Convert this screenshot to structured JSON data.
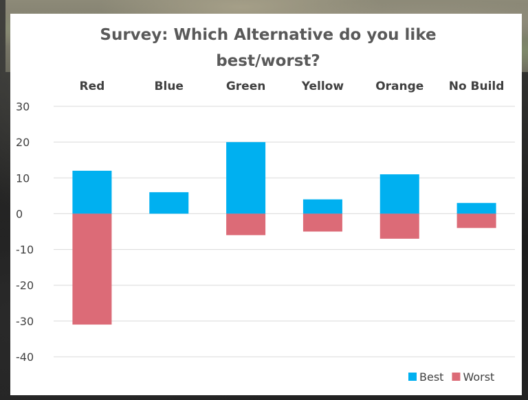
{
  "chart_data": {
    "type": "bar",
    "stacked": true,
    "title_lines": [
      "Survey: Which Alternative do you like",
      "best/worst?"
    ],
    "categories": [
      "Red",
      "Blue",
      "Green",
      "Yellow",
      "Orange",
      "No Build"
    ],
    "category_labels_position": "top",
    "series": [
      {
        "name": "Best",
        "color": "#00b0f0",
        "values": [
          12,
          6,
          20,
          4,
          11,
          3
        ]
      },
      {
        "name": "Worst",
        "color": "#dc6b77",
        "values": [
          -31,
          0,
          -6,
          -5,
          -7,
          -4
        ]
      }
    ],
    "ylim": [
      -40,
      30
    ],
    "yticks": [
      30,
      20,
      10,
      0,
      -10,
      -20,
      -30,
      -40
    ],
    "grid": true,
    "legend_position": "bottom-right"
  }
}
